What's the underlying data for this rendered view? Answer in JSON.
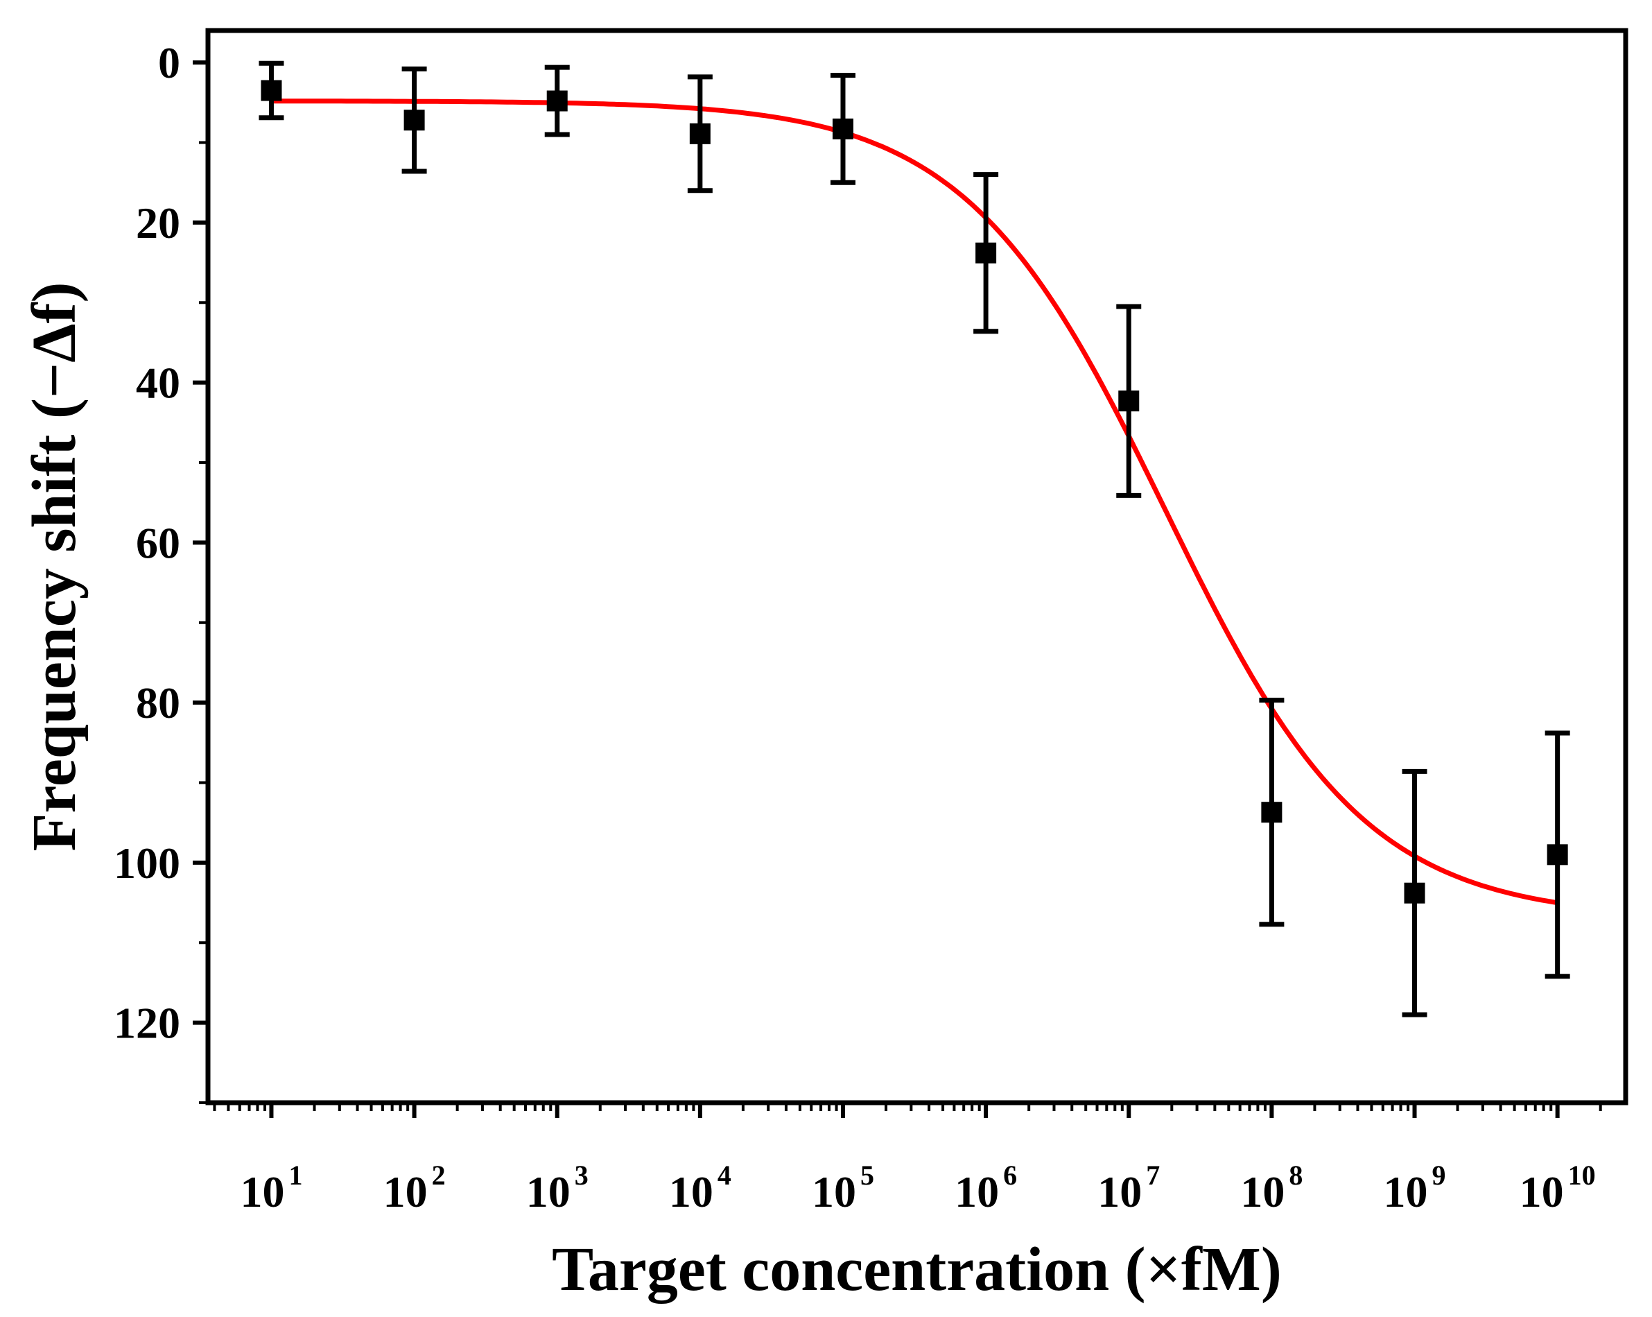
{
  "chart_data": {
    "type": "scatter",
    "title": "",
    "xlabel": "Target concentration (×fM)",
    "ylabel": "Frequency shift (−Δf)",
    "xscale": "log",
    "xlim": [
      3.6,
      30000000000
    ],
    "ylim": [
      130,
      -4
    ],
    "y_inverted": true,
    "grid": false,
    "legend": "none",
    "x_ticks": [
      {
        "value": 10,
        "base": "10",
        "exp": "1"
      },
      {
        "value": 100,
        "base": "10",
        "exp": "2"
      },
      {
        "value": 1000,
        "base": "10",
        "exp": "3"
      },
      {
        "value": 10000,
        "base": "10",
        "exp": "4"
      },
      {
        "value": 100000,
        "base": "10",
        "exp": "5"
      },
      {
        "value": 1000000,
        "base": "10",
        "exp": "6"
      },
      {
        "value": 10000000,
        "base": "10",
        "exp": "7"
      },
      {
        "value": 100000000,
        "base": "10",
        "exp": "8"
      },
      {
        "value": 1000000000,
        "base": "10",
        "exp": "9"
      },
      {
        "value": 10000000000,
        "base": "10",
        "exp": "10"
      }
    ],
    "y_ticks": [
      "0",
      "20",
      "40",
      "60",
      "80",
      "100",
      "120"
    ],
    "y_tick_values": [
      0,
      20,
      40,
      60,
      80,
      100,
      120
    ],
    "series": [
      {
        "kind": "points-with-error",
        "marker_color": "#000000",
        "x": [
          10,
          100,
          1000,
          10000,
          100000,
          1000000,
          10000000,
          100000000,
          1000000000,
          10000000000
        ],
        "y": [
          3.5,
          7.2,
          4.8,
          8.9,
          8.3,
          23.8,
          42.3,
          93.7,
          103.8,
          99.0
        ],
        "error": [
          3.4,
          6.4,
          4.2,
          7.1,
          6.7,
          9.8,
          11.8,
          14.0,
          15.2,
          15.2
        ]
      },
      {
        "kind": "fit-curve",
        "color": "#ff0000",
        "model": "logistic",
        "params": {
          "A1": 4.8,
          "A2": 107,
          "x0": 18000000,
          "p": 0.62
        },
        "x_range": [
          10,
          10000000000
        ]
      }
    ]
  }
}
